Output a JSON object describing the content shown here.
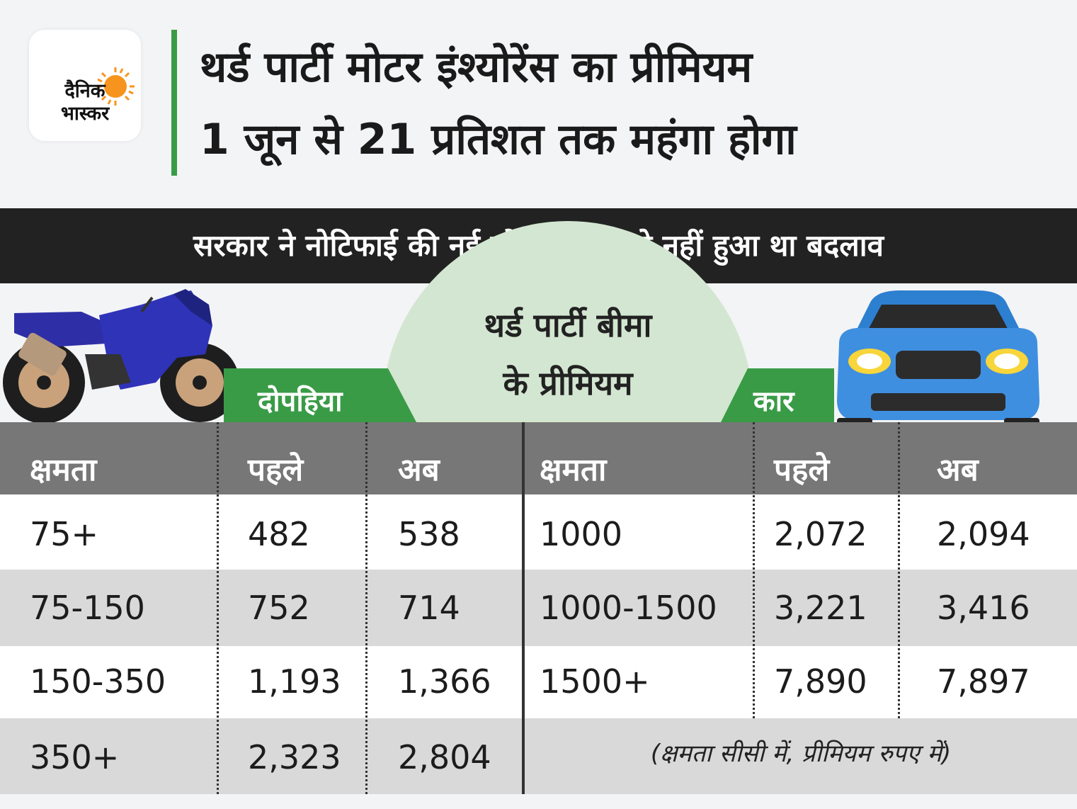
{
  "brand": {
    "name_line1": "दैनिक",
    "name_line2": "भास्कर"
  },
  "headline": {
    "line1": "थर्ड पार्टी मोटर इंश्योरेंस का प्रीमियम",
    "line2": "1 जून से 21 प्रतिशत तक महंगा होगा"
  },
  "subtitle": "सरकार ने नोटिफाई की नई दरें, दो साल से नहीं हुआ था बदलाव",
  "center_title": {
    "line1": "थर्ड पार्टी बीमा",
    "line2": "के प्रीमियम"
  },
  "colors": {
    "accent_green": "#3a9b46",
    "header_grey": "#777777",
    "circle": "#d3e6d1"
  },
  "chart_data": {
    "type": "table",
    "note": "(क्षमता सीसी में, प्रीमियम रुपए में)",
    "groups": [
      {
        "name": "दोपहिया",
        "columns": [
          "क्षमता",
          "पहले",
          "अब"
        ],
        "rows": [
          [
            "75+",
            "482",
            "538"
          ],
          [
            "75-150",
            "752",
            "714"
          ],
          [
            "150-350",
            "1,193",
            "1,366"
          ],
          [
            "350+",
            "2,323",
            "2,804"
          ]
        ]
      },
      {
        "name": "कार",
        "columns": [
          "क्षमता",
          "पहले",
          "अब"
        ],
        "rows": [
          [
            "1000",
            "2,072",
            "2,094"
          ],
          [
            "1000-1500",
            "3,221",
            "3,416"
          ],
          [
            "1500+",
            "7,890",
            "7,897"
          ]
        ]
      }
    ]
  }
}
